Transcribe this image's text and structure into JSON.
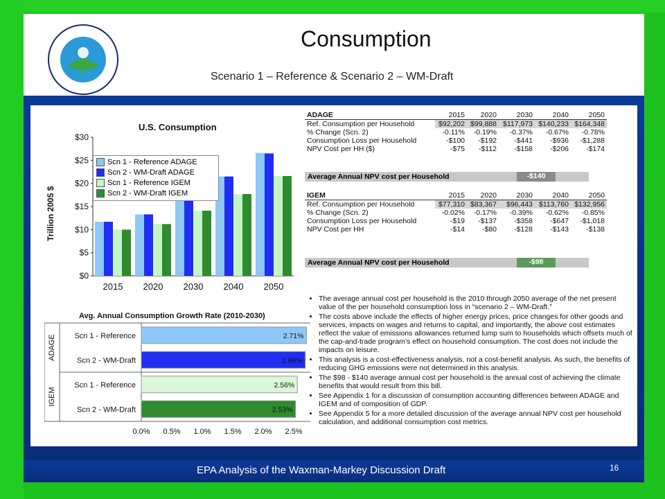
{
  "slide": {
    "title": "Consumption",
    "subtitle": "Scenario 1 – Reference & Scenario 2 – WM-Draft",
    "footer": "EPA Analysis of the Waxman-Markey Discussion Draft",
    "page_number": "16",
    "logo_text": "UNITED STATES ENVIRONMENTAL PROTECTION AGENCY"
  },
  "chart_data": [
    {
      "type": "bar",
      "title": "U.S. Consumption",
      "ylabel": "Trillion 2005 $",
      "categories": [
        "2015",
        "2020",
        "2030",
        "2040",
        "2050"
      ],
      "ylim": [
        0,
        30
      ],
      "yticks": [
        "$0",
        "$5",
        "$10",
        "$15",
        "$20",
        "$25",
        "$30"
      ],
      "series": [
        {
          "name": "Scn 1 - Reference ADAGE",
          "color": "#8ec8f6",
          "values": [
            11.7,
            13.3,
            17.2,
            21.5,
            26.6
          ]
        },
        {
          "name": "Scn 2 - WM-Draft ADAGE",
          "color": "#1f2ef2",
          "values": [
            11.7,
            13.3,
            17.1,
            21.5,
            26.5
          ]
        },
        {
          "name": "Scn 1 - Reference IGEM",
          "color": "#c5f5c5",
          "values": [
            10.0,
            11.2,
            14.1,
            17.7,
            21.6
          ]
        },
        {
          "name": "Scn 2 - WM-Draft IGEM",
          "color": "#2e8b2e",
          "values": [
            10.0,
            11.2,
            14.1,
            17.7,
            21.6
          ]
        }
      ],
      "legend": "top-left",
      "grid": false
    },
    {
      "type": "bar",
      "orientation": "horizontal",
      "title": "Avg. Annual Consumption Growth Rate (2010-2030)",
      "groups": [
        "ADAGE",
        "IGEM"
      ],
      "categories": [
        "Scn 1 - Reference",
        "Scn 2 - WM-Draft",
        "Scn 1 - Reference",
        "Scn 2 - WM-Draft"
      ],
      "values": [
        2.71,
        2.69,
        2.56,
        2.53
      ],
      "value_labels": [
        "2.71%",
        "2.69%",
        "2.56%",
        "2.53%"
      ],
      "colors": [
        "#8ec8f6",
        "#1f2ef2",
        "#d8f8d8",
        "#2e8b2e"
      ],
      "xlim": [
        0,
        3.0
      ],
      "xticks": [
        "0.0%",
        "0.5%",
        "1.0%",
        "1.5%",
        "2.0%",
        "2.5%",
        "3.0%"
      ]
    },
    {
      "type": "table",
      "name": "ADAGE",
      "header": [
        "ADAGE",
        "2015",
        "2020",
        "2030",
        "2040",
        "2050"
      ],
      "rows": [
        [
          "Ref. Consumption per Household",
          "$92,202",
          "$99,888",
          "$117,973",
          "$140,233",
          "$164,348"
        ],
        [
          "% Change (Scn. 2)",
          "-0.11%",
          "-0.19%",
          "-0.37%",
          "-0.67%",
          "-0.78%"
        ],
        [
          "Consumption Loss per Household",
          "-$100",
          "-$192",
          "-$441",
          "-$936",
          "-$1,288"
        ],
        [
          "NPV Cost per HH ($)",
          "-$75",
          "-$112",
          "-$158",
          "-$206",
          "-$174"
        ]
      ],
      "summary_label": "Average Annual NPV cost per Household",
      "summary_value": "-$140"
    },
    {
      "type": "table",
      "name": "IGEM",
      "header": [
        "IGEM",
        "2015",
        "2020",
        "2030",
        "2040",
        "2050"
      ],
      "rows": [
        [
          "Ref. Consumption per Household",
          "$77,310",
          "$83,367",
          "$96,443",
          "$113,760",
          "$132,956"
        ],
        [
          "% Change (Scn. 2)",
          "-0.02%",
          "-0.17%",
          "-0.39%",
          "-0.62%",
          "-0.85%"
        ],
        [
          "Consumption Loss per Household",
          "-$19",
          "-$137",
          "-$358",
          "-$647",
          "-$1,018"
        ],
        [
          "NPV Cost per HH",
          "-$14",
          "-$80",
          "-$128",
          "-$143",
          "-$138"
        ]
      ],
      "summary_label": "Average Annual NPV cost per Household",
      "summary_value": "-$98"
    }
  ],
  "bullets": [
    "The average annual cost per household is the 2010 through 2050 average of the net present value of the per household consumption loss in “scenario 2 – WM-Draft.”",
    "The costs above include the effects of higher energy prices, price changes for other goods and services, impacts on wages and returns to capital, and importantly, the above cost estimates reflect the value of emissions allowances returned lump sum to households which offsets much of the cap-and-trade program’s effect on household consumption. The cost does not include the impacts on leisure.",
    "This analysis is a cost-effectiveness analysis, not a cost-benefit analysis. As such, the benefits of reducing GHG emissions were not determined in this analysis.",
    "The $98 - $140 average annual cost per household is the annual cost of achieving the climate benefits that would result from this bill.",
    "See Appendix 1 for a discussion of consumption accounting differences between ADAGE and IGEM and of composition of GDP.",
    "See Appendix 5 for a more detailed discussion of the average annual NPV cost per household calculation, and additional consumption cost metrics."
  ]
}
